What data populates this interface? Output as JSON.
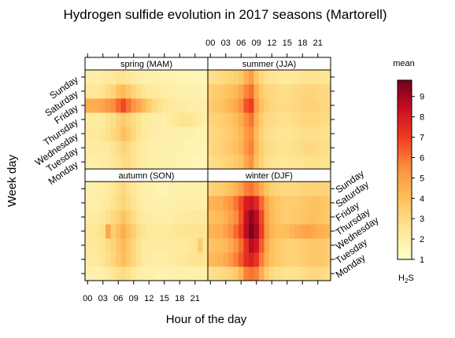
{
  "chart_data": {
    "type": "heatmap",
    "title": "Hydrogen sulfide evolution in 2017 seasons (Martorell)",
    "xlabel": "Hour of the day",
    "ylabel": "Week day",
    "x_tick_labels": [
      "00",
      "03",
      "06",
      "09",
      "12",
      "15",
      "18",
      "21"
    ],
    "y_categories": [
      "Monday",
      "Tuesday",
      "Wednesday",
      "Thursday",
      "Friday",
      "Saturday",
      "Sunday"
    ],
    "hours": [
      0,
      1,
      2,
      3,
      4,
      5,
      6,
      7,
      8,
      9,
      10,
      11,
      12,
      13,
      14,
      15,
      16,
      17,
      18,
      19,
      20,
      21,
      22,
      23
    ],
    "colorbar": {
      "title": "mean",
      "label": "H",
      "label_sub": "2",
      "label_suffix": "S",
      "ticks": [
        1,
        2,
        3,
        4,
        5,
        6,
        7,
        8,
        9
      ],
      "range": [
        1,
        9.8
      ]
    },
    "panels": [
      {
        "name": "spring (MAM)",
        "values": [
          [
            2.0,
            2.0,
            2.0,
            2.1,
            2.2,
            2.4,
            2.6,
            2.9,
            2.9,
            2.6,
            2.3,
            2.1,
            2.0,
            1.9,
            1.9,
            1.8,
            1.8,
            1.8,
            1.7,
            1.7,
            1.7,
            1.6,
            1.6,
            1.6
          ],
          [
            2.1,
            2.1,
            2.1,
            2.2,
            2.3,
            2.5,
            2.8,
            3.2,
            3.0,
            2.6,
            2.3,
            2.1,
            2.0,
            1.9,
            1.9,
            1.8,
            1.8,
            1.8,
            1.8,
            1.7,
            1.7,
            1.7,
            1.7,
            1.6
          ],
          [
            2.3,
            2.3,
            2.3,
            2.5,
            2.7,
            3.0,
            3.4,
            4.0,
            3.6,
            3.1,
            2.6,
            2.3,
            2.1,
            2.0,
            2.0,
            1.9,
            1.9,
            1.9,
            1.8,
            1.8,
            1.8,
            1.8,
            1.7,
            1.7
          ],
          [
            2.2,
            2.2,
            2.2,
            2.3,
            2.5,
            2.8,
            3.2,
            3.6,
            3.3,
            2.9,
            2.5,
            2.2,
            2.1,
            2.0,
            2.0,
            1.9,
            2.1,
            2.3,
            2.5,
            2.6,
            2.5,
            2.3,
            2.1,
            1.9
          ],
          [
            4.6,
            4.6,
            4.7,
            4.9,
            5.2,
            5.5,
            6.2,
            6.8,
            6.0,
            5.3,
            4.8,
            4.2,
            3.6,
            3.0,
            2.7,
            2.4,
            2.3,
            2.2,
            2.1,
            2.1,
            2.0,
            2.0,
            1.9,
            1.9
          ],
          [
            2.4,
            2.4,
            2.4,
            2.6,
            2.9,
            3.2,
            3.9,
            4.2,
            3.7,
            3.2,
            2.8,
            2.5,
            2.3,
            2.2,
            2.1,
            2.0,
            2.0,
            1.9,
            1.9,
            1.8,
            1.8,
            1.8,
            1.8,
            1.7
          ],
          [
            2.0,
            2.0,
            2.0,
            2.1,
            2.2,
            2.3,
            2.5,
            2.6,
            2.4,
            2.2,
            2.0,
            1.9,
            1.9,
            1.8,
            1.8,
            1.7,
            1.7,
            1.7,
            1.6,
            1.6,
            1.6,
            1.6,
            1.5,
            1.5
          ]
        ]
      },
      {
        "name": "summer (JJA)",
        "values": [
          [
            2.8,
            2.9,
            3.0,
            3.2,
            3.4,
            3.6,
            3.9,
            4.8,
            5.4,
            3.9,
            3.2,
            2.8,
            2.6,
            2.5,
            2.4,
            2.4,
            2.5,
            2.5,
            2.6,
            2.7,
            2.7,
            2.7,
            2.6,
            2.6
          ],
          [
            3.1,
            3.2,
            3.3,
            3.5,
            3.7,
            4.0,
            4.4,
            5.3,
            5.8,
            4.2,
            3.4,
            3.0,
            2.8,
            2.7,
            2.6,
            2.6,
            2.7,
            2.8,
            2.9,
            3.0,
            3.0,
            2.9,
            2.8,
            2.8
          ],
          [
            3.0,
            3.1,
            3.2,
            3.4,
            3.6,
            3.9,
            4.3,
            5.1,
            5.6,
            4.1,
            3.3,
            2.9,
            2.7,
            2.6,
            2.5,
            2.5,
            2.6,
            2.7,
            2.8,
            2.8,
            2.8,
            2.8,
            2.7,
            2.7
          ],
          [
            3.2,
            3.3,
            3.4,
            3.6,
            3.8,
            4.1,
            4.6,
            5.5,
            6.0,
            4.4,
            3.5,
            3.1,
            2.9,
            2.8,
            2.7,
            2.7,
            2.8,
            2.9,
            3.0,
            3.1,
            3.1,
            3.0,
            2.9,
            2.9
          ],
          [
            3.6,
            3.7,
            3.8,
            4.1,
            4.4,
            4.8,
            5.4,
            6.6,
            7.0,
            5.0,
            3.9,
            3.4,
            3.1,
            3.0,
            2.9,
            2.9,
            3.0,
            3.1,
            3.2,
            3.3,
            3.3,
            3.2,
            3.1,
            3.1
          ],
          [
            3.4,
            3.5,
            3.6,
            3.8,
            4.0,
            4.3,
            4.8,
            5.7,
            6.1,
            4.5,
            3.6,
            3.2,
            3.0,
            2.9,
            2.8,
            2.8,
            2.9,
            3.0,
            3.1,
            3.2,
            3.2,
            3.1,
            3.0,
            3.0
          ],
          [
            2.7,
            2.8,
            2.9,
            3.1,
            3.2,
            3.4,
            3.7,
            4.5,
            5.1,
            3.7,
            3.0,
            2.7,
            2.5,
            2.4,
            2.3,
            2.3,
            2.4,
            2.4,
            2.5,
            2.6,
            2.6,
            2.6,
            2.5,
            2.5
          ]
        ]
      },
      {
        "name": "autumn (SON)",
        "values": [
          [
            1.8,
            1.8,
            1.9,
            2.0,
            2.2,
            2.4,
            2.7,
            2.9,
            2.7,
            2.3,
            2.0,
            1.9,
            1.8,
            1.8,
            1.7,
            1.7,
            1.8,
            1.8,
            1.9,
            1.9,
            1.9,
            1.8,
            1.8,
            1.8
          ],
          [
            2.2,
            2.2,
            2.3,
            2.5,
            2.8,
            3.1,
            3.6,
            4.1,
            3.6,
            3.0,
            2.5,
            2.2,
            2.1,
            2.0,
            2.0,
            2.0,
            2.1,
            2.2,
            2.3,
            2.4,
            2.5,
            2.6,
            2.6,
            2.4
          ],
          [
            2.3,
            2.3,
            2.4,
            2.6,
            2.9,
            3.2,
            3.7,
            4.2,
            3.7,
            3.1,
            2.6,
            2.3,
            2.2,
            2.1,
            2.1,
            2.1,
            2.2,
            2.2,
            2.2,
            2.3,
            2.4,
            2.6,
            3.6,
            2.5
          ],
          [
            2.4,
            2.4,
            2.5,
            2.8,
            4.8,
            3.5,
            4.0,
            4.6,
            4.0,
            3.4,
            2.8,
            2.5,
            2.3,
            2.2,
            2.2,
            2.2,
            2.3,
            2.4,
            2.5,
            2.5,
            2.6,
            2.6,
            2.6,
            2.5
          ],
          [
            2.1,
            2.1,
            2.2,
            2.4,
            2.7,
            3.0,
            3.4,
            3.9,
            3.4,
            2.9,
            2.4,
            2.2,
            2.1,
            2.0,
            2.0,
            2.0,
            2.0,
            2.1,
            2.1,
            2.2,
            2.2,
            2.3,
            2.3,
            2.2
          ],
          [
            1.9,
            1.9,
            2.0,
            2.1,
            2.3,
            2.6,
            2.9,
            3.2,
            2.9,
            2.5,
            2.2,
            2.0,
            1.9,
            1.8,
            1.8,
            1.8,
            1.9,
            1.9,
            2.0,
            2.0,
            2.0,
            2.0,
            1.9,
            1.9
          ],
          [
            1.9,
            1.9,
            1.9,
            2.0,
            2.2,
            2.4,
            2.7,
            3.0,
            2.7,
            2.4,
            2.1,
            1.9,
            1.8,
            1.8,
            1.7,
            1.7,
            1.8,
            1.8,
            1.8,
            1.9,
            1.9,
            1.9,
            1.9,
            1.8
          ]
        ]
      },
      {
        "name": "winter (DJF)",
        "values": [
          [
            2.7,
            2.8,
            2.9,
            3.1,
            3.3,
            3.6,
            4.4,
            5.8,
            6.0,
            5.8,
            4.6,
            3.5,
            3.0,
            2.8,
            2.7,
            2.6,
            2.6,
            2.7,
            2.8,
            2.9,
            3.0,
            3.0,
            2.9,
            2.8
          ],
          [
            4.2,
            4.3,
            4.4,
            4.8,
            5.2,
            5.8,
            6.5,
            7.4,
            7.8,
            7.2,
            5.8,
            4.5,
            3.9,
            3.6,
            3.4,
            3.3,
            3.3,
            3.4,
            3.5,
            3.6,
            3.7,
            3.7,
            3.6,
            3.5
          ],
          [
            3.8,
            3.9,
            4.0,
            4.3,
            4.7,
            5.3,
            6.1,
            7.4,
            8.6,
            8.1,
            6.4,
            4.8,
            4.0,
            3.6,
            3.4,
            3.3,
            3.3,
            3.4,
            3.5,
            3.6,
            3.7,
            3.7,
            3.6,
            3.5
          ],
          [
            4.4,
            4.5,
            4.6,
            5.0,
            5.5,
            6.2,
            7.0,
            8.6,
            9.6,
            8.9,
            7.0,
            5.2,
            4.4,
            4.1,
            4.0,
            4.1,
            4.4,
            4.6,
            4.8,
            4.9,
            4.8,
            4.6,
            4.5,
            4.4
          ],
          [
            4.0,
            4.1,
            4.2,
            4.5,
            5.0,
            5.6,
            6.6,
            8.4,
            9.2,
            8.6,
            6.8,
            5.0,
            4.2,
            3.8,
            3.6,
            3.5,
            3.6,
            3.7,
            3.8,
            3.9,
            4.0,
            3.9,
            3.8,
            3.7
          ],
          [
            4.4,
            4.5,
            4.6,
            5.0,
            5.4,
            6.0,
            6.8,
            7.9,
            8.2,
            7.6,
            6.2,
            4.8,
            4.1,
            3.8,
            3.6,
            3.5,
            3.5,
            3.6,
            3.7,
            3.8,
            3.9,
            3.9,
            3.8,
            3.7
          ],
          [
            3.3,
            3.4,
            3.5,
            3.7,
            4.0,
            4.4,
            5.0,
            5.8,
            6.0,
            5.5,
            4.6,
            3.8,
            3.4,
            3.2,
            3.1,
            3.0,
            3.0,
            3.1,
            3.2,
            3.3,
            3.3,
            3.3,
            3.2,
            3.2
          ]
        ]
      }
    ]
  }
}
